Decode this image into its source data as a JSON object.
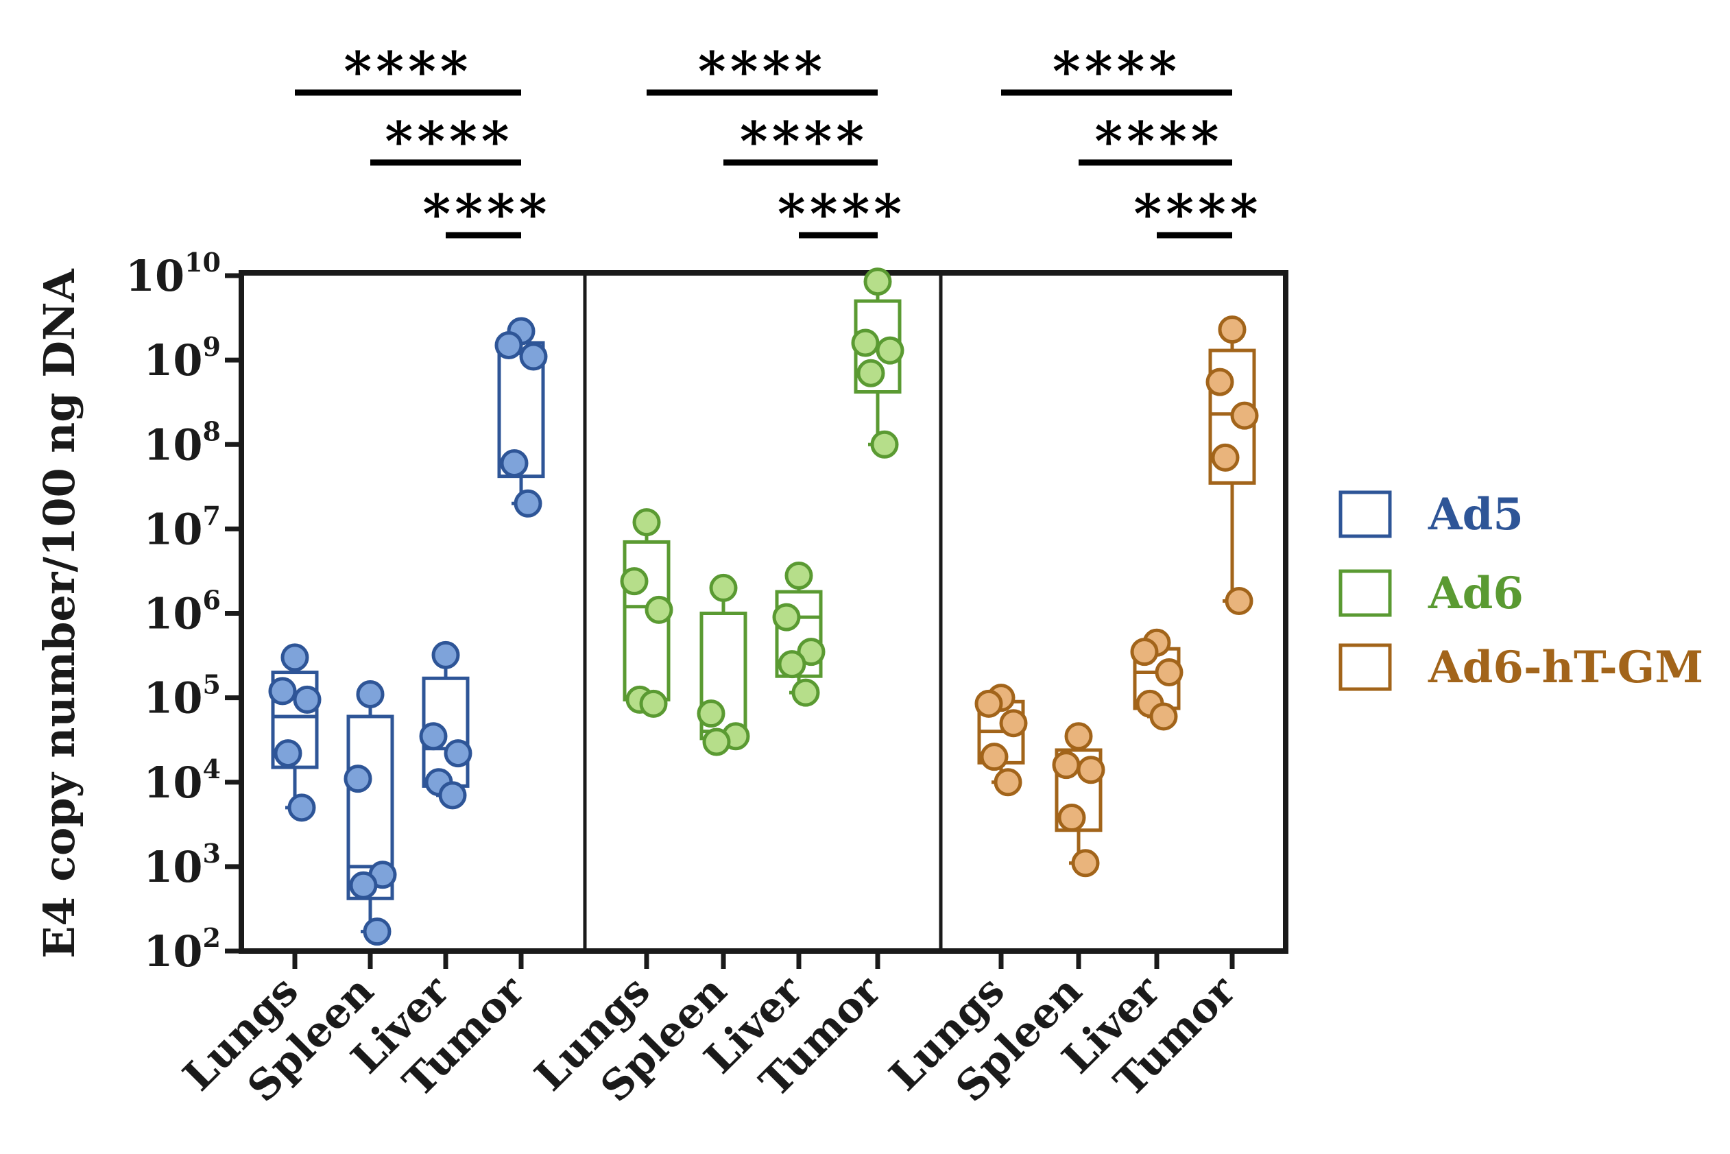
{
  "chart_data": {
    "type": "box",
    "ylabel": "E4 copy number/100 ng DNA",
    "yscale": "log10",
    "ylim": [
      100,
      10000000000
    ],
    "y_ticks": [
      {
        "base": "10",
        "exp": "2",
        "value": 100
      },
      {
        "base": "10",
        "exp": "3",
        "value": 1000
      },
      {
        "base": "10",
        "exp": "4",
        "value": 10000
      },
      {
        "base": "10",
        "exp": "5",
        "value": 100000
      },
      {
        "base": "10",
        "exp": "6",
        "value": 1000000
      },
      {
        "base": "10",
        "exp": "7",
        "value": 10000000
      },
      {
        "base": "10",
        "exp": "8",
        "value": 100000000
      },
      {
        "base": "10",
        "exp": "9",
        "value": 1000000000
      },
      {
        "base": "10",
        "exp": "10",
        "value": 10000000000
      }
    ],
    "categories": [
      "Lungs",
      "Spleen",
      "Liver",
      "Tumor"
    ],
    "groups": [
      {
        "name": "Ad5",
        "color": "#2E5597",
        "fill": "#7EA3DA",
        "boxes": [
          {
            "category": "Lungs",
            "q1": 15000,
            "median": 60000,
            "q3": 200000,
            "min": 5000,
            "max": 300000,
            "points": [
              300000,
              120000,
              95000,
              22000,
              5000
            ]
          },
          {
            "category": "Spleen",
            "q1": 420,
            "median": 1000,
            "q3": 60000,
            "min": 170,
            "max": 110000,
            "points": [
              110000,
              11000,
              800,
              600,
              170
            ]
          },
          {
            "category": "Liver",
            "q1": 9000,
            "median": 25000,
            "q3": 170000,
            "min": 7000,
            "max": 320000,
            "points": [
              320000,
              35000,
              22000,
              10000,
              7000
            ]
          },
          {
            "category": "Tumor",
            "q1": 42000000,
            "median": 1200000000,
            "q3": 1600000000,
            "min": 20000000,
            "max": 2200000000,
            "points": [
              2200000000,
              1500000000,
              1100000000,
              60000000,
              20000000
            ]
          }
        ],
        "significance": [
          {
            "label": "****",
            "from": "Lungs",
            "to": "Tumor"
          },
          {
            "label": "****",
            "from": "Spleen",
            "to": "Tumor"
          },
          {
            "label": "****",
            "from": "Liver",
            "to": "Tumor"
          }
        ]
      },
      {
        "name": "Ad6",
        "color": "#5A9A32",
        "fill": "#B6DE8A",
        "boxes": [
          {
            "category": "Lungs",
            "q1": 95000,
            "median": 1200000,
            "q3": 7000000,
            "min": 85000,
            "max": 12000000,
            "points": [
              12000000,
              2400000,
              1100000,
              95000,
              85000
            ]
          },
          {
            "category": "Spleen",
            "q1": 33000,
            "median": 40000,
            "q3": 1000000,
            "min": 30000,
            "max": 2000000,
            "points": [
              2000000,
              65000,
              35000,
              30000
            ]
          },
          {
            "category": "Liver",
            "q1": 180000,
            "median": 900000,
            "q3": 1800000,
            "min": 115000,
            "max": 2800000,
            "points": [
              2800000,
              900000,
              350000,
              250000,
              115000
            ]
          },
          {
            "category": "Tumor",
            "q1": 420000000,
            "median": 1300000000,
            "q3": 5000000000,
            "min": 100000000,
            "max": 8500000000,
            "points": [
              8500000000,
              1600000000,
              1300000000,
              700000000,
              100000000
            ]
          }
        ],
        "significance": [
          {
            "label": "****",
            "from": "Lungs",
            "to": "Tumor"
          },
          {
            "label": "****",
            "from": "Spleen",
            "to": "Tumor"
          },
          {
            "label": "****",
            "from": "Liver",
            "to": "Tumor"
          }
        ]
      },
      {
        "name": "Ad6-hT-GM",
        "color": "#A2641A",
        "fill": "#E9B47C",
        "boxes": [
          {
            "category": "Lungs",
            "q1": 17000,
            "median": 40000,
            "q3": 90000,
            "min": 10000,
            "max": 100000,
            "points": [
              100000,
              85000,
              50000,
              20000,
              10000
            ]
          },
          {
            "category": "Spleen",
            "q1": 2700,
            "median": 15000,
            "q3": 24000,
            "min": 1100,
            "max": 35000,
            "points": [
              35000,
              16000,
              14000,
              3800,
              1100
            ]
          },
          {
            "category": "Liver",
            "q1": 75000,
            "median": 200000,
            "q3": 380000,
            "min": 60000,
            "max": 450000,
            "points": [
              450000,
              350000,
              200000,
              85000,
              60000
            ]
          },
          {
            "category": "Tumor",
            "q1": 35000000,
            "median": 230000000,
            "q3": 1300000000,
            "min": 1400000,
            "max": 2300000000,
            "points": [
              2300000000,
              550000000,
              220000000,
              70000000,
              1400000
            ]
          }
        ],
        "significance": [
          {
            "label": "****",
            "from": "Lungs",
            "to": "Tumor"
          },
          {
            "label": "****",
            "from": "Spleen",
            "to": "Tumor"
          },
          {
            "label": "****",
            "from": "Liver",
            "to": "Tumor"
          }
        ]
      }
    ],
    "legend": {
      "position": "right",
      "entries": [
        {
          "label": "Ad5",
          "color": "#2E5597"
        },
        {
          "label": "Ad6",
          "color": "#5A9A32"
        },
        {
          "label": "Ad6-hT-GM",
          "color": "#A2641A"
        }
      ]
    }
  }
}
